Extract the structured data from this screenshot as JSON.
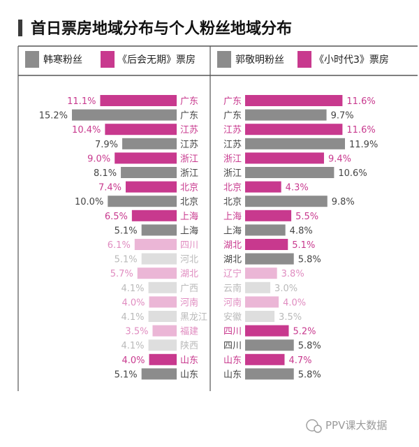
{
  "title": "首日票房地域分布与个人粉丝地域分布",
  "watermark": "PPV课大数据",
  "colors": {
    "magenta": "#c8398e",
    "gray": "#8c8c8c",
    "light_magenta": "#ebb6d6",
    "light_gray": "#dedede",
    "title_bar": "#3a3a3a"
  },
  "chart_data": [
    {
      "type": "bar",
      "orientation": "horizontal",
      "direction": "leftward",
      "title": "",
      "legend": [
        {
          "label": "韩寒粉丝",
          "color": "#8c8c8c"
        },
        {
          "label": "《后会无期》票房",
          "color": "#c8398e"
        }
      ],
      "xlim": [
        0,
        16
      ],
      "unit": "%",
      "rows": [
        {
          "label": "广东",
          "value": 11.1,
          "value_label": "11.1%",
          "series": "票房",
          "faded": false
        },
        {
          "label": "广东",
          "value": 15.2,
          "value_label": "15.2%",
          "series": "粉丝",
          "faded": false
        },
        {
          "label": "江苏",
          "value": 10.4,
          "value_label": "10.4%",
          "series": "票房",
          "faded": false
        },
        {
          "label": "江苏",
          "value": 7.9,
          "value_label": "7.9%",
          "series": "粉丝",
          "faded": false
        },
        {
          "label": "浙江",
          "value": 9.0,
          "value_label": "9.0%",
          "series": "票房",
          "faded": false
        },
        {
          "label": "浙江",
          "value": 8.1,
          "value_label": "8.1%",
          "series": "粉丝",
          "faded": false
        },
        {
          "label": "北京",
          "value": 7.4,
          "value_label": "7.4%",
          "series": "票房",
          "faded": false
        },
        {
          "label": "北京",
          "value": 10.0,
          "value_label": "10.0%",
          "series": "粉丝",
          "faded": false
        },
        {
          "label": "上海",
          "value": 6.5,
          "value_label": "6.5%",
          "series": "票房",
          "faded": false
        },
        {
          "label": "上海",
          "value": 5.1,
          "value_label": "5.1%",
          "series": "粉丝",
          "faded": false
        },
        {
          "label": "四川",
          "value": 6.1,
          "value_label": "6.1%",
          "series": "票房",
          "faded": true
        },
        {
          "label": "河北",
          "value": 5.1,
          "value_label": "5.1%",
          "series": "粉丝",
          "faded": true
        },
        {
          "label": "湖北",
          "value": 5.7,
          "value_label": "5.7%",
          "series": "票房",
          "faded": true
        },
        {
          "label": "广西",
          "value": 4.1,
          "value_label": "4.1%",
          "series": "粉丝",
          "faded": true
        },
        {
          "label": "河南",
          "value": 4.0,
          "value_label": "4.0%",
          "series": "票房",
          "faded": true
        },
        {
          "label": "黑龙江",
          "value": 4.1,
          "value_label": "4.1%",
          "series": "粉丝",
          "faded": true
        },
        {
          "label": "福建",
          "value": 3.5,
          "value_label": "3.5%",
          "series": "票房",
          "faded": true
        },
        {
          "label": "陕西",
          "value": 4.1,
          "value_label": "4.1%",
          "series": "粉丝",
          "faded": true
        },
        {
          "label": "山东",
          "value": 4.0,
          "value_label": "4.0%",
          "series": "票房",
          "faded": false
        },
        {
          "label": "山东",
          "value": 5.1,
          "value_label": "5.1%",
          "series": "粉丝",
          "faded": false
        }
      ]
    },
    {
      "type": "bar",
      "orientation": "horizontal",
      "direction": "rightward",
      "title": "",
      "legend": [
        {
          "label": "郭敬明粉丝",
          "color": "#8c8c8c"
        },
        {
          "label": "《小时代3》票房",
          "color": "#c8398e"
        }
      ],
      "xlim": [
        0,
        14
      ],
      "unit": "%",
      "rows": [
        {
          "label": "广东",
          "value": 11.6,
          "value_label": "11.6%",
          "series": "票房",
          "faded": false
        },
        {
          "label": "广东",
          "value": 9.7,
          "value_label": "9.7%",
          "series": "粉丝",
          "faded": false
        },
        {
          "label": "江苏",
          "value": 11.6,
          "value_label": "11.6%",
          "series": "票房",
          "faded": false
        },
        {
          "label": "江苏",
          "value": 11.9,
          "value_label": "11.9%",
          "series": "粉丝",
          "faded": false
        },
        {
          "label": "浙江",
          "value": 9.4,
          "value_label": "9.4%",
          "series": "票房",
          "faded": false
        },
        {
          "label": "浙江",
          "value": 10.6,
          "value_label": "10.6%",
          "series": "粉丝",
          "faded": false
        },
        {
          "label": "北京",
          "value": 4.3,
          "value_label": "4.3%",
          "series": "票房",
          "faded": false
        },
        {
          "label": "北京",
          "value": 9.8,
          "value_label": "9.8%",
          "series": "粉丝",
          "faded": false
        },
        {
          "label": "上海",
          "value": 5.5,
          "value_label": "5.5%",
          "series": "票房",
          "faded": false
        },
        {
          "label": "上海",
          "value": 4.8,
          "value_label": "4.8%",
          "series": "粉丝",
          "faded": false
        },
        {
          "label": "湖北",
          "value": 5.1,
          "value_label": "5.1%",
          "series": "票房",
          "faded": false
        },
        {
          "label": "湖北",
          "value": 5.8,
          "value_label": "5.8%",
          "series": "粉丝",
          "faded": false
        },
        {
          "label": "辽宁",
          "value": 3.8,
          "value_label": "3.8%",
          "series": "票房",
          "faded": true
        },
        {
          "label": "云南",
          "value": 3.0,
          "value_label": "3.0%",
          "series": "粉丝",
          "faded": true
        },
        {
          "label": "河南",
          "value": 4.0,
          "value_label": "4.0%",
          "series": "票房",
          "faded": true
        },
        {
          "label": "安徽",
          "value": 3.5,
          "value_label": "3.5%",
          "series": "粉丝",
          "faded": true
        },
        {
          "label": "四川",
          "value": 5.2,
          "value_label": "5.2%",
          "series": "票房",
          "faded": false
        },
        {
          "label": "四川",
          "value": 5.8,
          "value_label": "5.8%",
          "series": "粉丝",
          "faded": false
        },
        {
          "label": "山东",
          "value": 4.7,
          "value_label": "4.7%",
          "series": "票房",
          "faded": false
        },
        {
          "label": "山东",
          "value": 5.8,
          "value_label": "5.8%",
          "series": "粉丝",
          "faded": false
        }
      ]
    }
  ]
}
